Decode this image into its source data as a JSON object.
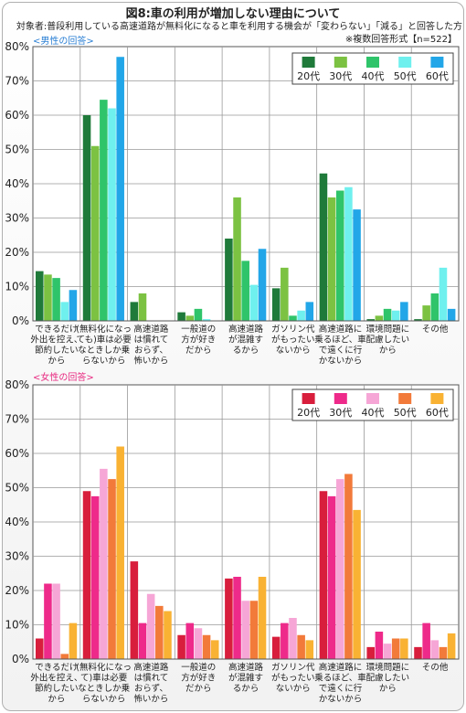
{
  "title": "図8:車の利用が増加しない理由について",
  "subtitle": "対象者:普段利用している高速道路が無料化になると車を利用する機会が「変わらない」「減る」と回答した方",
  "note": "※複数回答形式【n=522】",
  "chart_data": [
    {
      "type": "bar",
      "panel_label": "<男性の回答>",
      "ylim": [
        0,
        80
      ],
      "yticks": [
        "0%",
        "10%",
        "20%",
        "30%",
        "40%",
        "50%",
        "60%",
        "70%",
        "80%"
      ],
      "grid": true,
      "legend_position": "top-right",
      "categories": [
        [
          "できるだけ",
          "外出を控え、",
          "節約したい",
          "から"
        ],
        [
          "(無料化になっ",
          "ても)車は必要",
          "なときしか乗",
          "らないから"
        ],
        [
          "高速道路",
          "は慣れて",
          "おらず、",
          "怖いから"
        ],
        [
          "一般道の",
          "方が好き",
          "だから"
        ],
        [
          "高速道路",
          "が混雑す",
          "るから"
        ],
        [
          "ガソリン代",
          "がもったい",
          "ないから"
        ],
        [
          "高速道路に",
          "乗るほど、車",
          "で遠くに行",
          "かないから"
        ],
        [
          "環境問題に",
          "配慮したい",
          "から"
        ],
        [
          "その他"
        ]
      ],
      "series": [
        {
          "name": "20代",
          "color": "#1f7a3a",
          "values": [
            14.5,
            60,
            5.5,
            2.5,
            24,
            9.5,
            43,
            0.5,
            0.5
          ]
        },
        {
          "name": "30代",
          "color": "#7cc242",
          "values": [
            13.5,
            51,
            8,
            1.5,
            36,
            15.5,
            36,
            1.5,
            4.5
          ]
        },
        {
          "name": "40代",
          "color": "#2fc46a",
          "values": [
            12.5,
            64.5,
            0,
            3.5,
            17.5,
            1.5,
            38,
            3.5,
            8
          ]
        },
        {
          "name": "50代",
          "color": "#6ff0ee",
          "values": [
            5.5,
            62,
            0,
            0.5,
            10.5,
            3,
            39,
            3,
            15.5
          ]
        },
        {
          "name": "60代",
          "color": "#22a6e8",
          "values": [
            9,
            77,
            0,
            0,
            21,
            5.5,
            32.5,
            5.5,
            3.5
          ]
        }
      ]
    },
    {
      "type": "bar",
      "panel_label": "<女性の回答>",
      "ylim": [
        0,
        80
      ],
      "yticks": [
        "0%",
        "10%",
        "20%",
        "30%",
        "40%",
        "50%",
        "60%",
        "70%",
        "80%"
      ],
      "grid": true,
      "legend_position": "top-right",
      "categories": [
        [
          "できるだけ",
          "外出を控え、",
          "節約したい",
          "から"
        ],
        [
          "(無料化になっ",
          "て)車は必要",
          "なときしか乗",
          "らないから"
        ],
        [
          "高速道路",
          "は慣れて",
          "おらず、",
          "怖いから"
        ],
        [
          "一般道の",
          "方が好き",
          "だから"
        ],
        [
          "高速道路",
          "が混雑す",
          "るから"
        ],
        [
          "ガソリン代",
          "がもったい",
          "ないから"
        ],
        [
          "高速道路に",
          "乗るほど、車",
          "で遠くに行",
          "かないから"
        ],
        [
          "環境問題に",
          "配慮したい",
          "から"
        ],
        [
          "その他"
        ]
      ],
      "series": [
        {
          "name": "20代",
          "color": "#d81e3c",
          "values": [
            6,
            49,
            28.5,
            7,
            23.5,
            6.5,
            49,
            3.5,
            3.5
          ]
        },
        {
          "name": "30代",
          "color": "#ee2a8a",
          "values": [
            22,
            47.5,
            10.5,
            10.5,
            24,
            10.5,
            47.5,
            8,
            10.5
          ]
        },
        {
          "name": "40代",
          "color": "#f6a6d6",
          "values": [
            22,
            55.5,
            19,
            9,
            17,
            12,
            52.5,
            4.5,
            5.5
          ]
        },
        {
          "name": "50代",
          "color": "#f27a3a",
          "values": [
            1.5,
            52.5,
            15.5,
            7,
            17,
            7,
            54,
            6,
            3.5
          ]
        },
        {
          "name": "60代",
          "color": "#f9b233",
          "values": [
            10.5,
            62,
            14,
            5.5,
            24,
            5.5,
            43.5,
            6,
            7.5
          ]
        }
      ]
    }
  ]
}
